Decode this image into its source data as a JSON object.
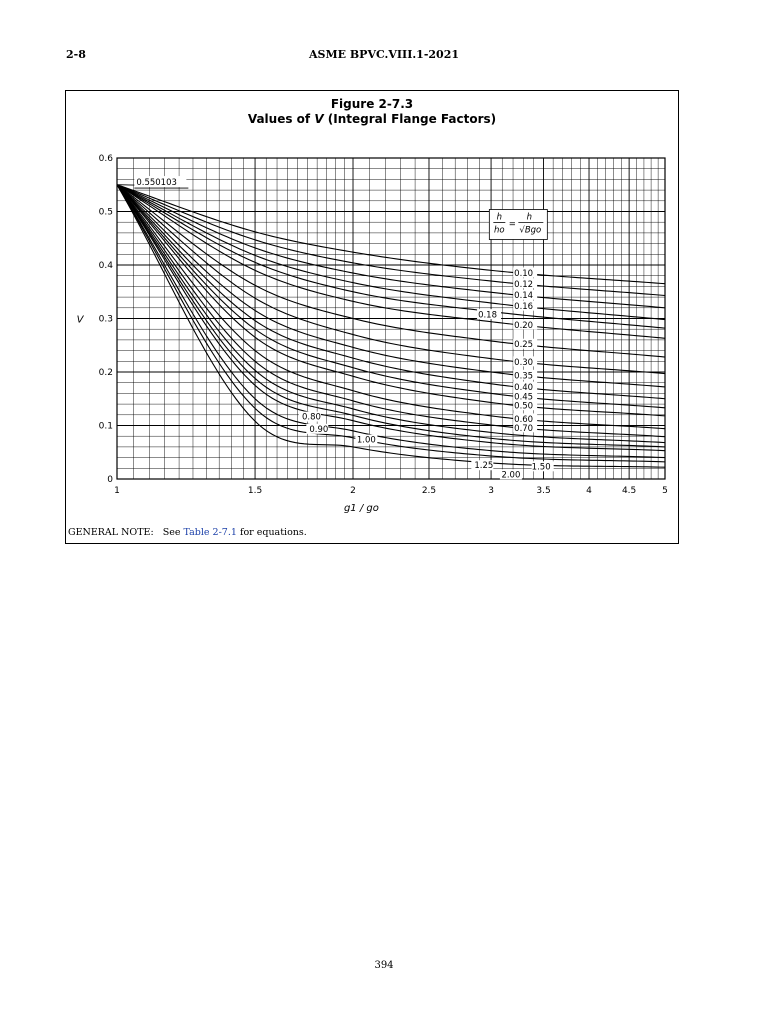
{
  "header": {
    "page_ref": "2-8",
    "standard": "ASME BPVC.VIII.1-2021"
  },
  "figure": {
    "number": "Figure 2-7.3",
    "title_prefix": "Values of ",
    "title_var": "V",
    "title_suffix": " (Integral Flange Factors)"
  },
  "chart_data": {
    "type": "line",
    "xlabel": "g1 / go",
    "ylabel": "V",
    "xscale": "log",
    "xlim": [
      1,
      5
    ],
    "ylim": [
      0,
      0.6
    ],
    "grid": true,
    "x_ticks": [
      "1",
      "1.5",
      "2",
      "2.5",
      "3",
      "3.5",
      "4",
      "4.5",
      "5"
    ],
    "y_ticks": [
      "0",
      "0.1",
      "0.2",
      "0.3",
      "0.4",
      "0.5",
      "0.6"
    ],
    "start_value_label": "0.550103",
    "start_value": 0.550103,
    "legend_formula": {
      "lhs_num": "h",
      "lhs_den": "ho",
      "eq": "=",
      "rhs_num": "h",
      "rhs_den": "√Bgo"
    },
    "series": [
      {
        "name": "0.10",
        "points": [
          [
            1,
            0.55
          ],
          [
            1.5,
            0.462
          ],
          [
            2,
            0.424
          ],
          [
            3,
            0.39
          ],
          [
            5,
            0.365
          ]
        ]
      },
      {
        "name": "0.12",
        "points": [
          [
            1,
            0.55
          ],
          [
            1.5,
            0.447
          ],
          [
            2,
            0.404
          ],
          [
            3,
            0.37
          ],
          [
            5,
            0.343
          ]
        ]
      },
      {
        "name": "0.14",
        "points": [
          [
            1,
            0.55
          ],
          [
            1.5,
            0.432
          ],
          [
            2,
            0.385
          ],
          [
            3,
            0.349
          ],
          [
            5,
            0.32
          ]
        ]
      },
      {
        "name": "0.16",
        "points": [
          [
            1,
            0.55
          ],
          [
            1.5,
            0.418
          ],
          [
            2,
            0.367
          ],
          [
            3,
            0.329
          ],
          [
            5,
            0.298
          ]
        ]
      },
      {
        "name": "0.18",
        "points": [
          [
            1,
            0.55
          ],
          [
            1.5,
            0.405
          ],
          [
            2,
            0.35
          ],
          [
            3,
            0.313
          ],
          [
            5,
            0.282
          ]
        ]
      },
      {
        "name": "0.20",
        "points": [
          [
            1,
            0.55
          ],
          [
            1.5,
            0.39
          ],
          [
            2,
            0.332
          ],
          [
            3,
            0.294
          ],
          [
            5,
            0.263
          ]
        ]
      },
      {
        "name": "0.25",
        "points": [
          [
            1,
            0.55
          ],
          [
            1.5,
            0.362
          ],
          [
            2,
            0.3
          ],
          [
            3,
            0.258
          ],
          [
            5,
            0.228
          ]
        ]
      },
      {
        "name": "0.30",
        "points": [
          [
            1,
            0.55
          ],
          [
            1.5,
            0.338
          ],
          [
            2,
            0.27
          ],
          [
            3,
            0.225
          ],
          [
            5,
            0.197
          ]
        ]
      },
      {
        "name": "0.35",
        "points": [
          [
            1,
            0.55
          ],
          [
            1.5,
            0.315
          ],
          [
            2,
            0.246
          ],
          [
            3,
            0.2
          ],
          [
            5,
            0.172
          ]
        ]
      },
      {
        "name": "0.40",
        "points": [
          [
            1,
            0.55
          ],
          [
            1.5,
            0.296
          ],
          [
            2,
            0.226
          ],
          [
            3,
            0.178
          ],
          [
            5,
            0.15
          ]
        ]
      },
      {
        "name": "0.45",
        "points": [
          [
            1,
            0.55
          ],
          [
            1.5,
            0.28
          ],
          [
            2,
            0.208
          ],
          [
            3,
            0.16
          ],
          [
            5,
            0.133
          ]
        ]
      },
      {
        "name": "0.50",
        "points": [
          [
            1,
            0.55
          ],
          [
            1.5,
            0.265
          ],
          [
            2,
            0.192
          ],
          [
            3,
            0.143
          ],
          [
            5,
            0.118
          ]
        ]
      },
      {
        "name": "0.60",
        "points": [
          [
            1,
            0.55
          ],
          [
            1.5,
            0.24
          ],
          [
            2,
            0.165
          ],
          [
            3,
            0.118
          ],
          [
            5,
            0.094
          ]
        ]
      },
      {
        "name": "0.70",
        "points": [
          [
            1,
            0.55
          ],
          [
            1.5,
            0.22
          ],
          [
            2,
            0.146
          ],
          [
            3,
            0.101
          ],
          [
            5,
            0.079
          ]
        ]
      },
      {
        "name": "0.80",
        "points": [
          [
            1,
            0.55
          ],
          [
            1.5,
            0.203
          ],
          [
            2,
            0.131
          ],
          [
            3,
            0.087
          ],
          [
            5,
            0.068
          ]
        ]
      },
      {
        "name": "0.90",
        "points": [
          [
            1,
            0.55
          ],
          [
            1.5,
            0.188
          ],
          [
            2,
            0.119
          ],
          [
            3,
            0.076
          ],
          [
            5,
            0.06
          ]
        ]
      },
      {
        "name": "1.00",
        "points": [
          [
            1,
            0.55
          ],
          [
            1.5,
            0.175
          ],
          [
            2,
            0.109
          ],
          [
            3,
            0.068
          ],
          [
            5,
            0.053
          ]
        ]
      },
      {
        "name": "1.25",
        "points": [
          [
            1,
            0.55
          ],
          [
            1.5,
            0.15
          ],
          [
            2,
            0.09
          ],
          [
            3,
            0.053
          ],
          [
            5,
            0.04
          ]
        ]
      },
      {
        "name": "1.50",
        "points": [
          [
            1,
            0.55
          ],
          [
            1.5,
            0.132
          ],
          [
            2,
            0.077
          ],
          [
            3,
            0.043
          ],
          [
            5,
            0.032
          ]
        ]
      },
      {
        "name": "2.00",
        "points": [
          [
            1,
            0.55
          ],
          [
            1.5,
            0.108
          ],
          [
            2,
            0.06
          ],
          [
            3,
            0.03
          ],
          [
            5,
            0.022
          ]
        ]
      }
    ]
  },
  "note": {
    "label": "GENERAL NOTE:",
    "pre": "See ",
    "link": "Table 2-7.1",
    "post": " for equations."
  },
  "page_number": "394"
}
